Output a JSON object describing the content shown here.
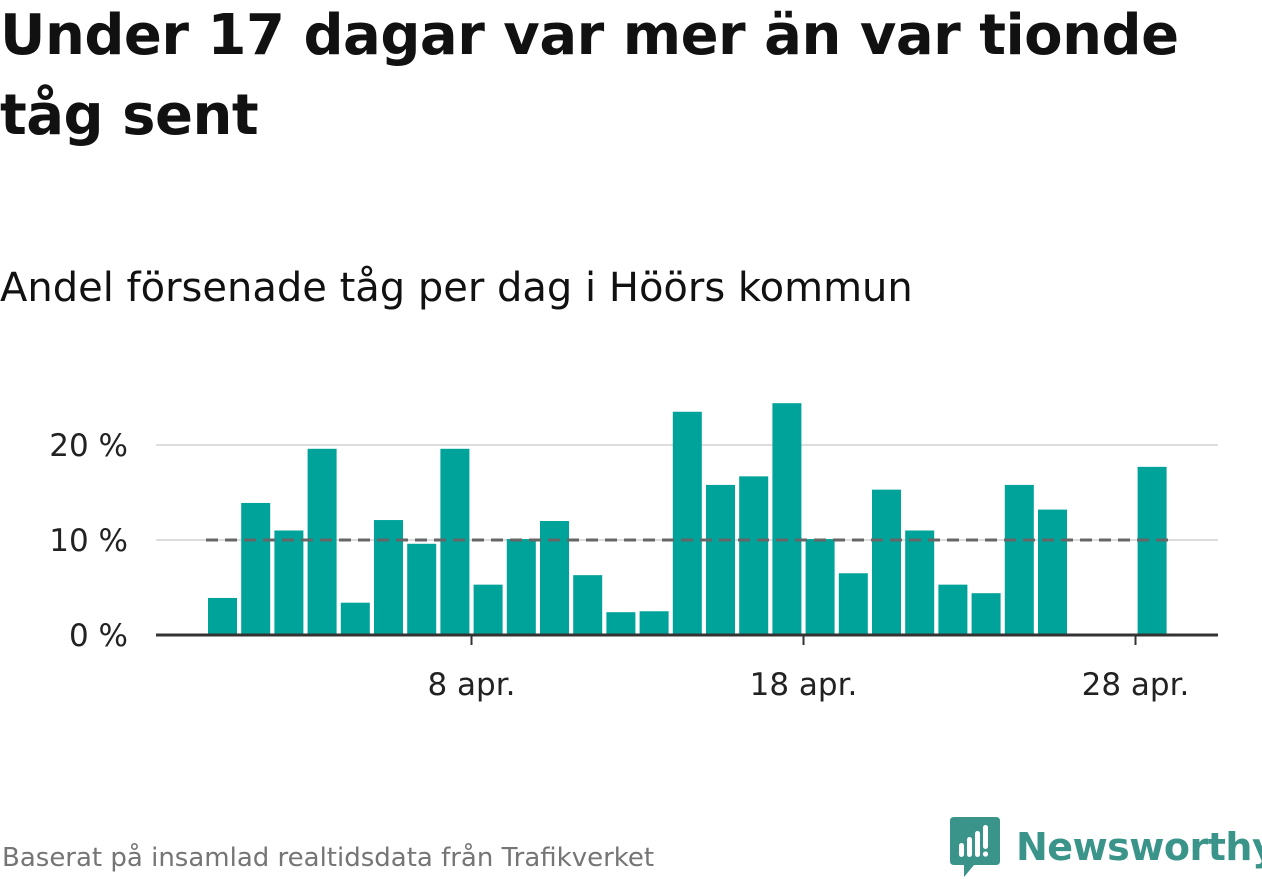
{
  "header": {
    "title": "Under 17 dagar var mer än var tionde tåg sent",
    "subtitle": "Andel försenade tåg per dag i Höörs kommun"
  },
  "footer": {
    "source": "Baserat på insamlad realtidsdata från Trafikverket",
    "logo_text": "Newsworthy"
  },
  "colors": {
    "bar": "#00a39a",
    "reference_line": "#666666",
    "grid": "#dddddd",
    "axis": "#333333",
    "logo": "#3a948a"
  },
  "chart_data": {
    "type": "bar",
    "x_start": "2024-03-30",
    "x_end": "2024-04-29",
    "x": [
      "2024-03-30",
      "2024-03-31",
      "2024-04-01",
      "2024-04-02",
      "2024-04-03",
      "2024-04-04",
      "2024-04-05",
      "2024-04-06",
      "2024-04-07",
      "2024-04-08",
      "2024-04-09",
      "2024-04-10",
      "2024-04-11",
      "2024-04-12",
      "2024-04-13",
      "2024-04-14",
      "2024-04-15",
      "2024-04-16",
      "2024-04-17",
      "2024-04-18",
      "2024-04-19",
      "2024-04-20",
      "2024-04-21",
      "2024-04-22",
      "2024-04-23",
      "2024-04-24",
      "2024-04-25",
      "2024-04-26",
      "2024-04-27",
      "2024-04-28",
      "2024-04-29"
    ],
    "values": [
      null,
      3.9,
      13.9,
      11.0,
      19.6,
      3.4,
      12.1,
      9.6,
      19.6,
      5.3,
      10.1,
      12.0,
      6.3,
      2.4,
      2.5,
      23.5,
      15.8,
      16.7,
      24.4,
      10.1,
      6.5,
      15.3,
      11.0,
      5.3,
      4.4,
      15.8,
      13.2,
      null,
      null,
      17.7,
      null
    ],
    "ylim": [
      0,
      26
    ],
    "y_ticks": [
      0,
      10,
      20
    ],
    "y_tick_labels": [
      "0 %",
      "10 %",
      "20 %"
    ],
    "x_ticks": [
      "2024-04-08",
      "2024-04-18",
      "2024-04-28"
    ],
    "x_tick_labels": [
      "8 apr.",
      "18 apr.",
      "28 apr."
    ],
    "reference_line": {
      "value": 10,
      "style": "dashed"
    },
    "grid": true,
    "legend": "none",
    "xlabel": "",
    "ylabel": ""
  }
}
